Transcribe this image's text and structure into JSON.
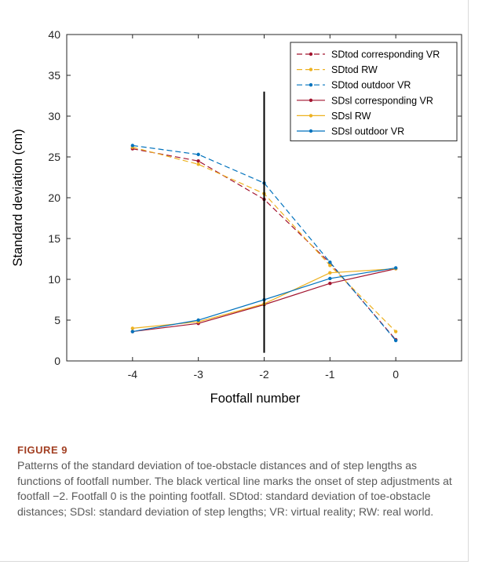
{
  "chart_data": {
    "type": "line",
    "xlabel": "Footfall number",
    "ylabel": "Standard deviation (cm)",
    "xlim": [
      -5,
      1
    ],
    "ylim": [
      0,
      40
    ],
    "x_ticks": [
      -4,
      -3,
      -2,
      -1,
      0
    ],
    "y_ticks": [
      0,
      5,
      10,
      15,
      20,
      25,
      30,
      35,
      40
    ],
    "x": [
      -4,
      -3,
      -2,
      -1,
      0
    ],
    "grid": false,
    "legend_position": "top-right",
    "vertical_marker": {
      "x": -2,
      "y_from": 1,
      "y_to": 33,
      "color": "#000000"
    },
    "series": [
      {
        "name": "SDtod corresponding VR",
        "color": "#a2142f",
        "dashed": true,
        "values": [
          26.0,
          24.5,
          19.8,
          12.0,
          2.6
        ]
      },
      {
        "name": "SDtod RW",
        "color": "#edb120",
        "dashed": true,
        "values": [
          26.2,
          24.1,
          20.5,
          11.7,
          3.6
        ]
      },
      {
        "name": "SDtod outdoor VR",
        "color": "#0072bd",
        "dashed": true,
        "values": [
          26.4,
          25.3,
          21.8,
          12.1,
          2.5
        ]
      },
      {
        "name": "SDsl corresponding VR",
        "color": "#a2142f",
        "dashed": false,
        "values": [
          3.6,
          4.6,
          6.9,
          9.5,
          11.3
        ]
      },
      {
        "name": "SDsl RW",
        "color": "#edb120",
        "dashed": false,
        "values": [
          4.0,
          4.8,
          7.0,
          10.8,
          11.3
        ]
      },
      {
        "name": "SDsl outdoor VR",
        "color": "#0072bd",
        "dashed": false,
        "values": [
          3.6,
          5.0,
          7.5,
          10.1,
          11.4
        ]
      }
    ]
  },
  "caption": {
    "label": "FIGURE 9",
    "text": "Patterns of the standard deviation of toe-obstacle distances and of step lengths as functions of footfall number. The black vertical line marks the onset of step adjustments at footfall −2. Footfall 0 is the pointing footfall. SDtod: standard deviation of toe-obstacle distances; SDsl: standard deviation of step lengths; VR: virtual reality; RW: real world."
  }
}
